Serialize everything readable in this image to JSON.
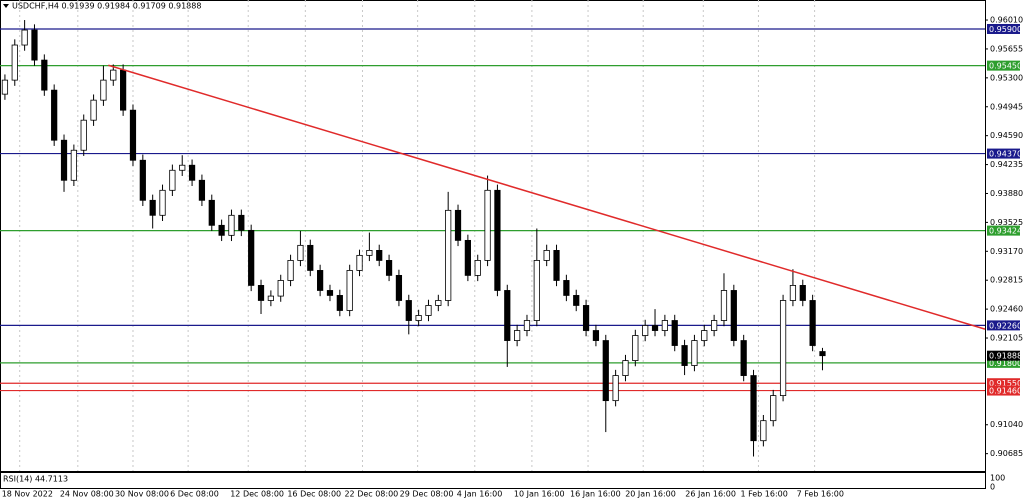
{
  "chart_data": {
    "type": "candlestick",
    "title": "USDCHF,H4 0.91939 0.91984 0.91709 0.91888",
    "indicator_label": "RSI(14) 44.7113",
    "indicator_ticks": [
      "100",
      "0"
    ],
    "xlim": [
      0,
      100
    ],
    "xticks": [
      {
        "value": 2,
        "label": "18 Nov 2022"
      },
      {
        "value": 7.9,
        "label": "24 Nov 08:00"
      },
      {
        "value": 13.5,
        "label": "30 Nov 08:00"
      },
      {
        "value": 19.1,
        "label": "6 Dec 08:00"
      },
      {
        "value": 25.2,
        "label": "12 Dec 08:00"
      },
      {
        "value": 31,
        "label": "16 Dec 08:00"
      },
      {
        "value": 36.8,
        "label": "22 Dec 08:00"
      },
      {
        "value": 42.4,
        "label": "29 Dec 08:00"
      },
      {
        "value": 48.2,
        "label": "4 Jan 16:00"
      },
      {
        "value": 54,
        "label": "10 Jan 16:00"
      },
      {
        "value": 59.7,
        "label": "16 Jan 16:00"
      },
      {
        "value": 65.3,
        "label": "20 Jan 16:00"
      },
      {
        "value": 71.4,
        "label": "26 Jan 16:00"
      },
      {
        "value": 77,
        "label": "1 Feb 16:00"
      },
      {
        "value": 82.7,
        "label": "7 Feb 16:00"
      }
    ],
    "ylim": [
      0.90472,
      0.96256
    ],
    "yticks": [
      {
        "value": 0.9601,
        "label": "0.96010"
      },
      {
        "value": 0.95655,
        "label": "0.95655"
      },
      {
        "value": 0.953,
        "label": "0.95300"
      },
      {
        "value": 0.94945,
        "label": "0.94945"
      },
      {
        "value": 0.9459,
        "label": "0.94590"
      },
      {
        "value": 0.94235,
        "label": "0.94235"
      },
      {
        "value": 0.9388,
        "label": "0.93880"
      },
      {
        "value": 0.93525,
        "label": "0.93525"
      },
      {
        "value": 0.9317,
        "label": "0.93170"
      },
      {
        "value": 0.92815,
        "label": "0.92815"
      },
      {
        "value": 0.9246,
        "label": "0.92460"
      },
      {
        "value": 0.92105,
        "label": "0.92105"
      },
      {
        "value": 0.9104,
        "label": "0.91040"
      },
      {
        "value": 0.90685,
        "label": "0.90685"
      }
    ],
    "up_color": "#ffffff",
    "down_color": "#000000",
    "open": [
      0.951,
      0.95272,
      0.95703,
      0.95887,
      0.95518,
      0.95149,
      0.94534,
      0.94042,
      0.94411,
      0.9478,
      0.95026,
      0.95272,
      0.95395,
      0.94903,
      0.94288,
      0.93796,
      0.93612,
      0.93919,
      0.94165,
      0.94227,
      0.94042,
      0.93796,
      0.93489,
      0.93366,
      0.93612,
      0.93427,
      0.92751,
      0.92566,
      0.9262,
      0.92812,
      0.93058,
      0.93243,
      0.92935,
      0.92689,
      0.92628,
      0.92443,
      0.92935,
      0.9312,
      0.93181,
      0.93058,
      0.92874,
      0.92566,
      0.9232,
      0.92382,
      0.92505,
      0.92566,
      0.93673,
      0.93304,
      0.92874,
      0.93058,
      0.93919,
      0.92689,
      0.92074,
      0.92197,
      0.9232,
      0.93058,
      0.93181,
      0.92812,
      0.92628,
      0.92505,
      0.92197,
      0.92074,
      0.91336,
      0.91644,
      0.91828,
      0.92136,
      0.92259,
      0.92197,
      0.9232,
      0.92013,
      0.91767,
      0.92074,
      0.92197,
      0.9232,
      0.92689,
      0.92074,
      0.91644,
      0.90844,
      0.9109,
      0.91398,
      0.92566,
      0.92751,
      0.92566,
      0.91939
    ],
    "high": [
      0.95342,
      0.95773,
      0.9601,
      0.95957,
      0.95588,
      0.95219,
      0.94604,
      0.94481,
      0.9485,
      0.95096,
      0.9545,
      0.95465,
      0.95465,
      0.94973,
      0.94358,
      0.93866,
      0.93989,
      0.94235,
      0.9435,
      0.94297,
      0.94112,
      0.93866,
      0.93559,
      0.93682,
      0.93682,
      0.93497,
      0.92821,
      0.9269,
      0.92882,
      0.93128,
      0.9342,
      0.93313,
      0.93005,
      0.92759,
      0.92698,
      0.93005,
      0.9319,
      0.934,
      0.93251,
      0.93128,
      0.92944,
      0.92636,
      0.92452,
      0.92575,
      0.92636,
      0.939,
      0.93743,
      0.93374,
      0.93128,
      0.941,
      0.93989,
      0.92759,
      0.92267,
      0.9239,
      0.9345,
      0.93251,
      0.93251,
      0.92882,
      0.92698,
      0.92575,
      0.92267,
      0.92144,
      0.91714,
      0.91898,
      0.92206,
      0.92329,
      0.9246,
      0.9239,
      0.9239,
      0.92083,
      0.92144,
      0.92267,
      0.9239,
      0.929,
      0.92759,
      0.92144,
      0.91714,
      0.9116,
      0.91468,
      0.92636,
      0.9295,
      0.92821,
      0.92636,
      0.91984
    ],
    "low": [
      0.9503,
      0.95202,
      0.95633,
      0.95448,
      0.95079,
      0.94464,
      0.939,
      0.93972,
      0.94341,
      0.9471,
      0.94956,
      0.95202,
      0.94833,
      0.94218,
      0.93726,
      0.9345,
      0.93542,
      0.93849,
      0.94095,
      0.93972,
      0.93726,
      0.93419,
      0.93296,
      0.93296,
      0.93357,
      0.92681,
      0.924,
      0.92496,
      0.9255,
      0.92742,
      0.92988,
      0.92865,
      0.92619,
      0.92558,
      0.92373,
      0.92373,
      0.92865,
      0.9305,
      0.92988,
      0.92804,
      0.92496,
      0.9215,
      0.9225,
      0.92312,
      0.92435,
      0.92496,
      0.93234,
      0.92804,
      0.92804,
      0.92988,
      0.92619,
      0.9175,
      0.92004,
      0.92127,
      0.9225,
      0.92988,
      0.92742,
      0.92558,
      0.92435,
      0.92127,
      0.92004,
      0.9095,
      0.91266,
      0.91574,
      0.91758,
      0.92066,
      0.92127,
      0.92127,
      0.91943,
      0.9165,
      0.91697,
      0.92004,
      0.92127,
      0.9225,
      0.92004,
      0.91574,
      0.9065,
      0.90774,
      0.9102,
      0.91328,
      0.92496,
      0.92496,
      0.91943,
      0.91709
    ],
    "close": [
      0.95272,
      0.95703,
      0.95887,
      0.95518,
      0.95149,
      0.94534,
      0.94042,
      0.94411,
      0.9478,
      0.95026,
      0.95272,
      0.95395,
      0.94903,
      0.94288,
      0.93796,
      0.93612,
      0.93919,
      0.94165,
      0.94227,
      0.94042,
      0.93796,
      0.93489,
      0.93366,
      0.93612,
      0.93427,
      0.92751,
      0.92566,
      0.9262,
      0.92812,
      0.93058,
      0.93243,
      0.92935,
      0.92689,
      0.92628,
      0.92443,
      0.92935,
      0.9312,
      0.93181,
      0.93058,
      0.92874,
      0.92566,
      0.9232,
      0.92382,
      0.92505,
      0.92566,
      0.93673,
      0.93304,
      0.92874,
      0.93058,
      0.93919,
      0.92689,
      0.92074,
      0.92197,
      0.9232,
      0.93058,
      0.93181,
      0.92812,
      0.92628,
      0.92505,
      0.92197,
      0.92074,
      0.91336,
      0.91644,
      0.91828,
      0.92136,
      0.92259,
      0.92197,
      0.9232,
      0.92013,
      0.91767,
      0.92074,
      0.92197,
      0.9232,
      0.92689,
      0.92074,
      0.91644,
      0.90844,
      0.9109,
      0.91398,
      0.92566,
      0.92751,
      0.92566,
      0.92013,
      0.91888
    ],
    "levels": [
      {
        "value": 0.959,
        "label": "0.95900",
        "color": "#1a1a8c"
      },
      {
        "value": 0.9545,
        "label": "0.95450",
        "color": "#2e9e2e"
      },
      {
        "value": 0.9437,
        "label": "0.94370",
        "color": "#1a1a8c"
      },
      {
        "value": 0.93424,
        "label": "0.93424",
        "color": "#2e9e2e"
      },
      {
        "value": 0.9226,
        "label": "0.92260",
        "color": "#1a1a8c"
      },
      {
        "value": 0.918,
        "label": "0.91800",
        "color": "#2e9e2e"
      },
      {
        "value": 0.9155,
        "label": "0.91550",
        "color": "#e02a2a"
      },
      {
        "value": 0.9146,
        "label": "0.91460",
        "color": "#e02a2a"
      }
    ],
    "current_price": {
      "value": 0.91888,
      "label": "0.91888",
      "color": "#000000"
    },
    "trendline": {
      "x": [
        11,
        100
      ],
      "y": [
        0.95455,
        0.92214
      ],
      "color": "#e02a2a"
    }
  }
}
